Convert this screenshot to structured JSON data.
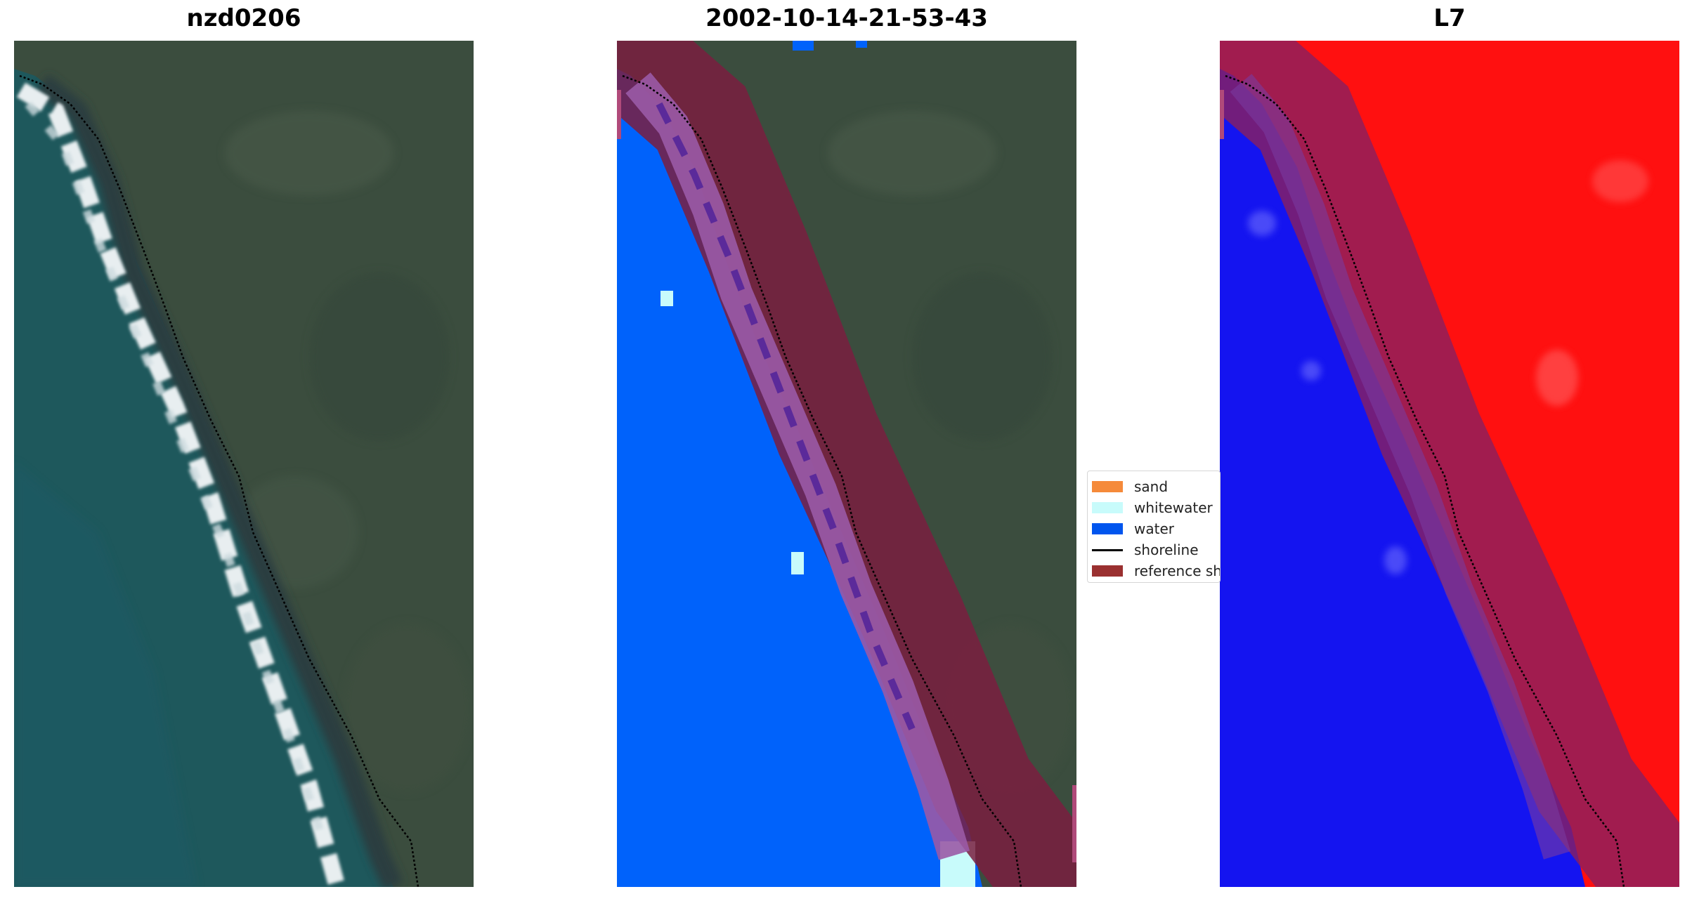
{
  "panels": [
    {
      "title": "nzd0206",
      "kind": "rgb-image"
    },
    {
      "title": "2002-10-14-21-53-43",
      "kind": "classified-image"
    },
    {
      "title": "L7",
      "kind": "index-image"
    }
  ],
  "legend": {
    "items": [
      {
        "label": "sand",
        "color": "#f58a3a",
        "type": "patch"
      },
      {
        "label": "whitewater",
        "color": "#c8fbfb",
        "type": "patch"
      },
      {
        "label": "water",
        "color": "#0055ee",
        "type": "patch"
      },
      {
        "label": "shoreline",
        "color": "#000000",
        "type": "line"
      },
      {
        "label": "reference shoreline buffer",
        "color": "#9a3030",
        "type": "patch"
      }
    ]
  },
  "colors": {
    "land": "#3a4c3c",
    "ocean": "#1f5a5f",
    "surf": "#e6edf0",
    "water_class": "#0062fb",
    "buffer": "#7a1f3f",
    "index_high": "#ff1010",
    "index_low": "#1010f0"
  }
}
